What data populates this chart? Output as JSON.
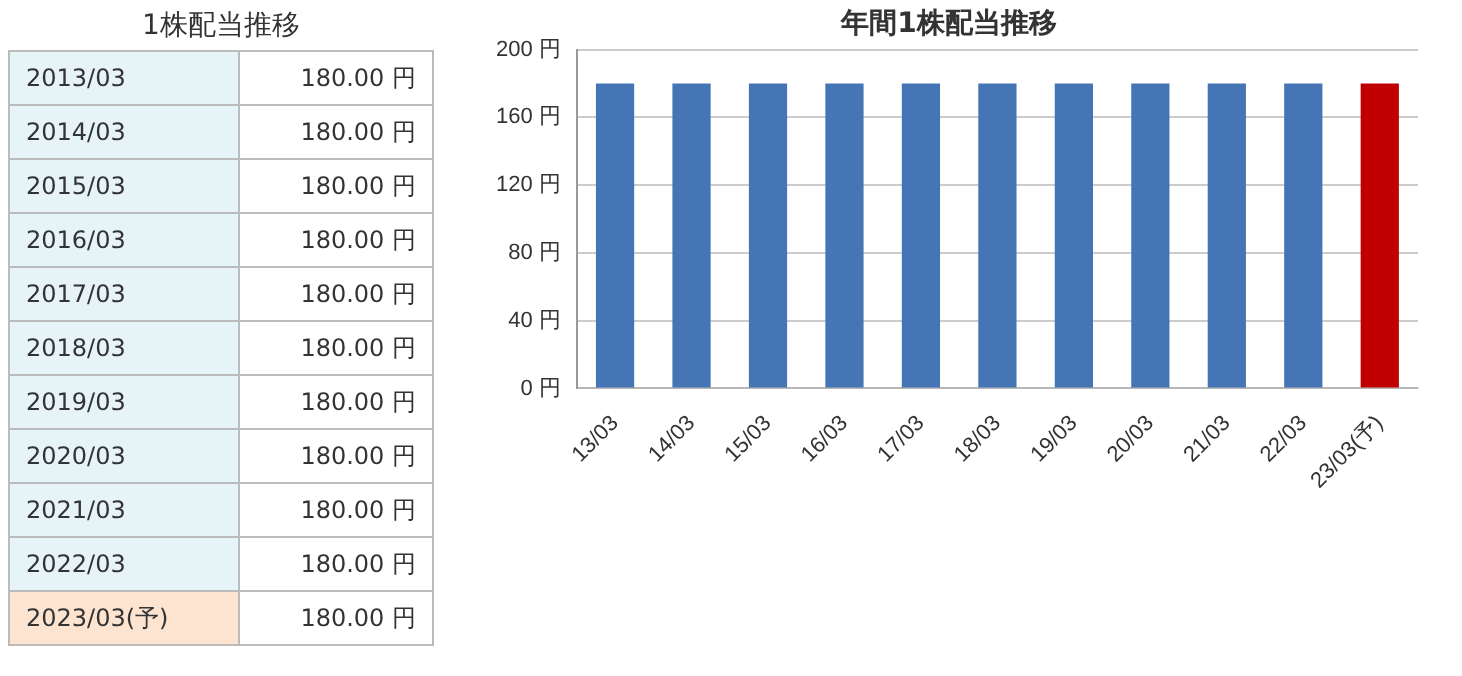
{
  "chart_data": [
    {
      "type": "other",
      "title": "1株配当推移",
      "categories": [
        "2013/03",
        "2014/03",
        "2015/03",
        "2016/03",
        "2017/03",
        "2018/03",
        "2019/03",
        "2020/03",
        "2021/03",
        "2022/03",
        "2023/03(予)"
      ],
      "value_labels": [
        "180.00 円",
        "180.00 円",
        "180.00 円",
        "180.00 円",
        "180.00 円",
        "180.00 円",
        "180.00 円",
        "180.00 円",
        "180.00 円",
        "180.00 円",
        "180.00 円"
      ]
    },
    {
      "type": "bar",
      "title": "年間1株配当推移",
      "categories": [
        "13/03",
        "14/03",
        "15/03",
        "16/03",
        "17/03",
        "18/03",
        "19/03",
        "20/03",
        "21/03",
        "22/03",
        "23/03(予)"
      ],
      "values": [
        180,
        180,
        180,
        180,
        180,
        180,
        180,
        180,
        180,
        180,
        180
      ],
      "colors": [
        "#4575b5",
        "#4575b5",
        "#4575b5",
        "#4575b5",
        "#4575b5",
        "#4575b5",
        "#4575b5",
        "#4575b5",
        "#4575b5",
        "#4575b5",
        "#c00000"
      ],
      "ylim": [
        0,
        200
      ],
      "yticks": [
        {
          "value": 0,
          "label": "0 円"
        },
        {
          "value": 40,
          "label": "40 円"
        },
        {
          "value": 80,
          "label": "80 円"
        },
        {
          "value": 120,
          "label": "120 円"
        },
        {
          "value": 160,
          "label": "160 円"
        },
        {
          "value": 200,
          "label": "200 円"
        }
      ],
      "grid": "y",
      "legend": false
    }
  ]
}
